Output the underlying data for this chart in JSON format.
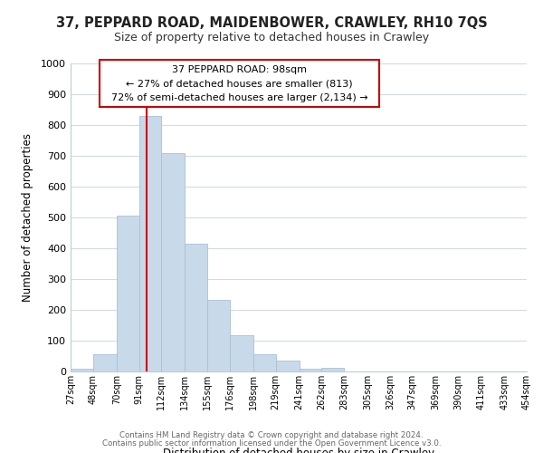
{
  "title": "37, PEPPARD ROAD, MAIDENBOWER, CRAWLEY, RH10 7QS",
  "subtitle": "Size of property relative to detached houses in Crawley",
  "xlabel": "Distribution of detached houses by size in Crawley",
  "ylabel": "Number of detached properties",
  "bar_color": "#c8daea",
  "bar_edge_color": "#a8c0d6",
  "property_line_color": "#cc0000",
  "bin_edges": [
    27,
    48,
    70,
    91,
    112,
    134,
    155,
    176,
    198,
    219,
    241,
    262,
    283,
    305,
    326,
    347,
    369,
    390,
    411,
    433,
    454
  ],
  "bin_labels": [
    "27sqm",
    "48sqm",
    "70sqm",
    "91sqm",
    "112sqm",
    "134sqm",
    "155sqm",
    "176sqm",
    "198sqm",
    "219sqm",
    "241sqm",
    "262sqm",
    "283sqm",
    "305sqm",
    "326sqm",
    "347sqm",
    "369sqm",
    "390sqm",
    "411sqm",
    "433sqm",
    "454sqm"
  ],
  "heights": [
    10,
    55,
    505,
    828,
    710,
    416,
    232,
    118,
    57,
    35,
    10,
    12,
    0,
    0,
    0,
    0,
    0,
    0,
    0,
    0
  ],
  "property_value": 98,
  "annotation_title": "37 PEPPARD ROAD: 98sqm",
  "annotation_line1": "← 27% of detached houses are smaller (813)",
  "annotation_line2": "72% of semi-detached houses are larger (2,134) →",
  "annotation_box_color": "#ffffff",
  "annotation_box_edge_color": "#cc0000",
  "ylim": [
    0,
    1000
  ],
  "yticks": [
    0,
    100,
    200,
    300,
    400,
    500,
    600,
    700,
    800,
    900,
    1000
  ],
  "footer_line1": "Contains HM Land Registry data © Crown copyright and database right 2024.",
  "footer_line2": "Contains public sector information licensed under the Open Government Licence v3.0.",
  "background_color": "#ffffff",
  "grid_color": "#d0dce8"
}
